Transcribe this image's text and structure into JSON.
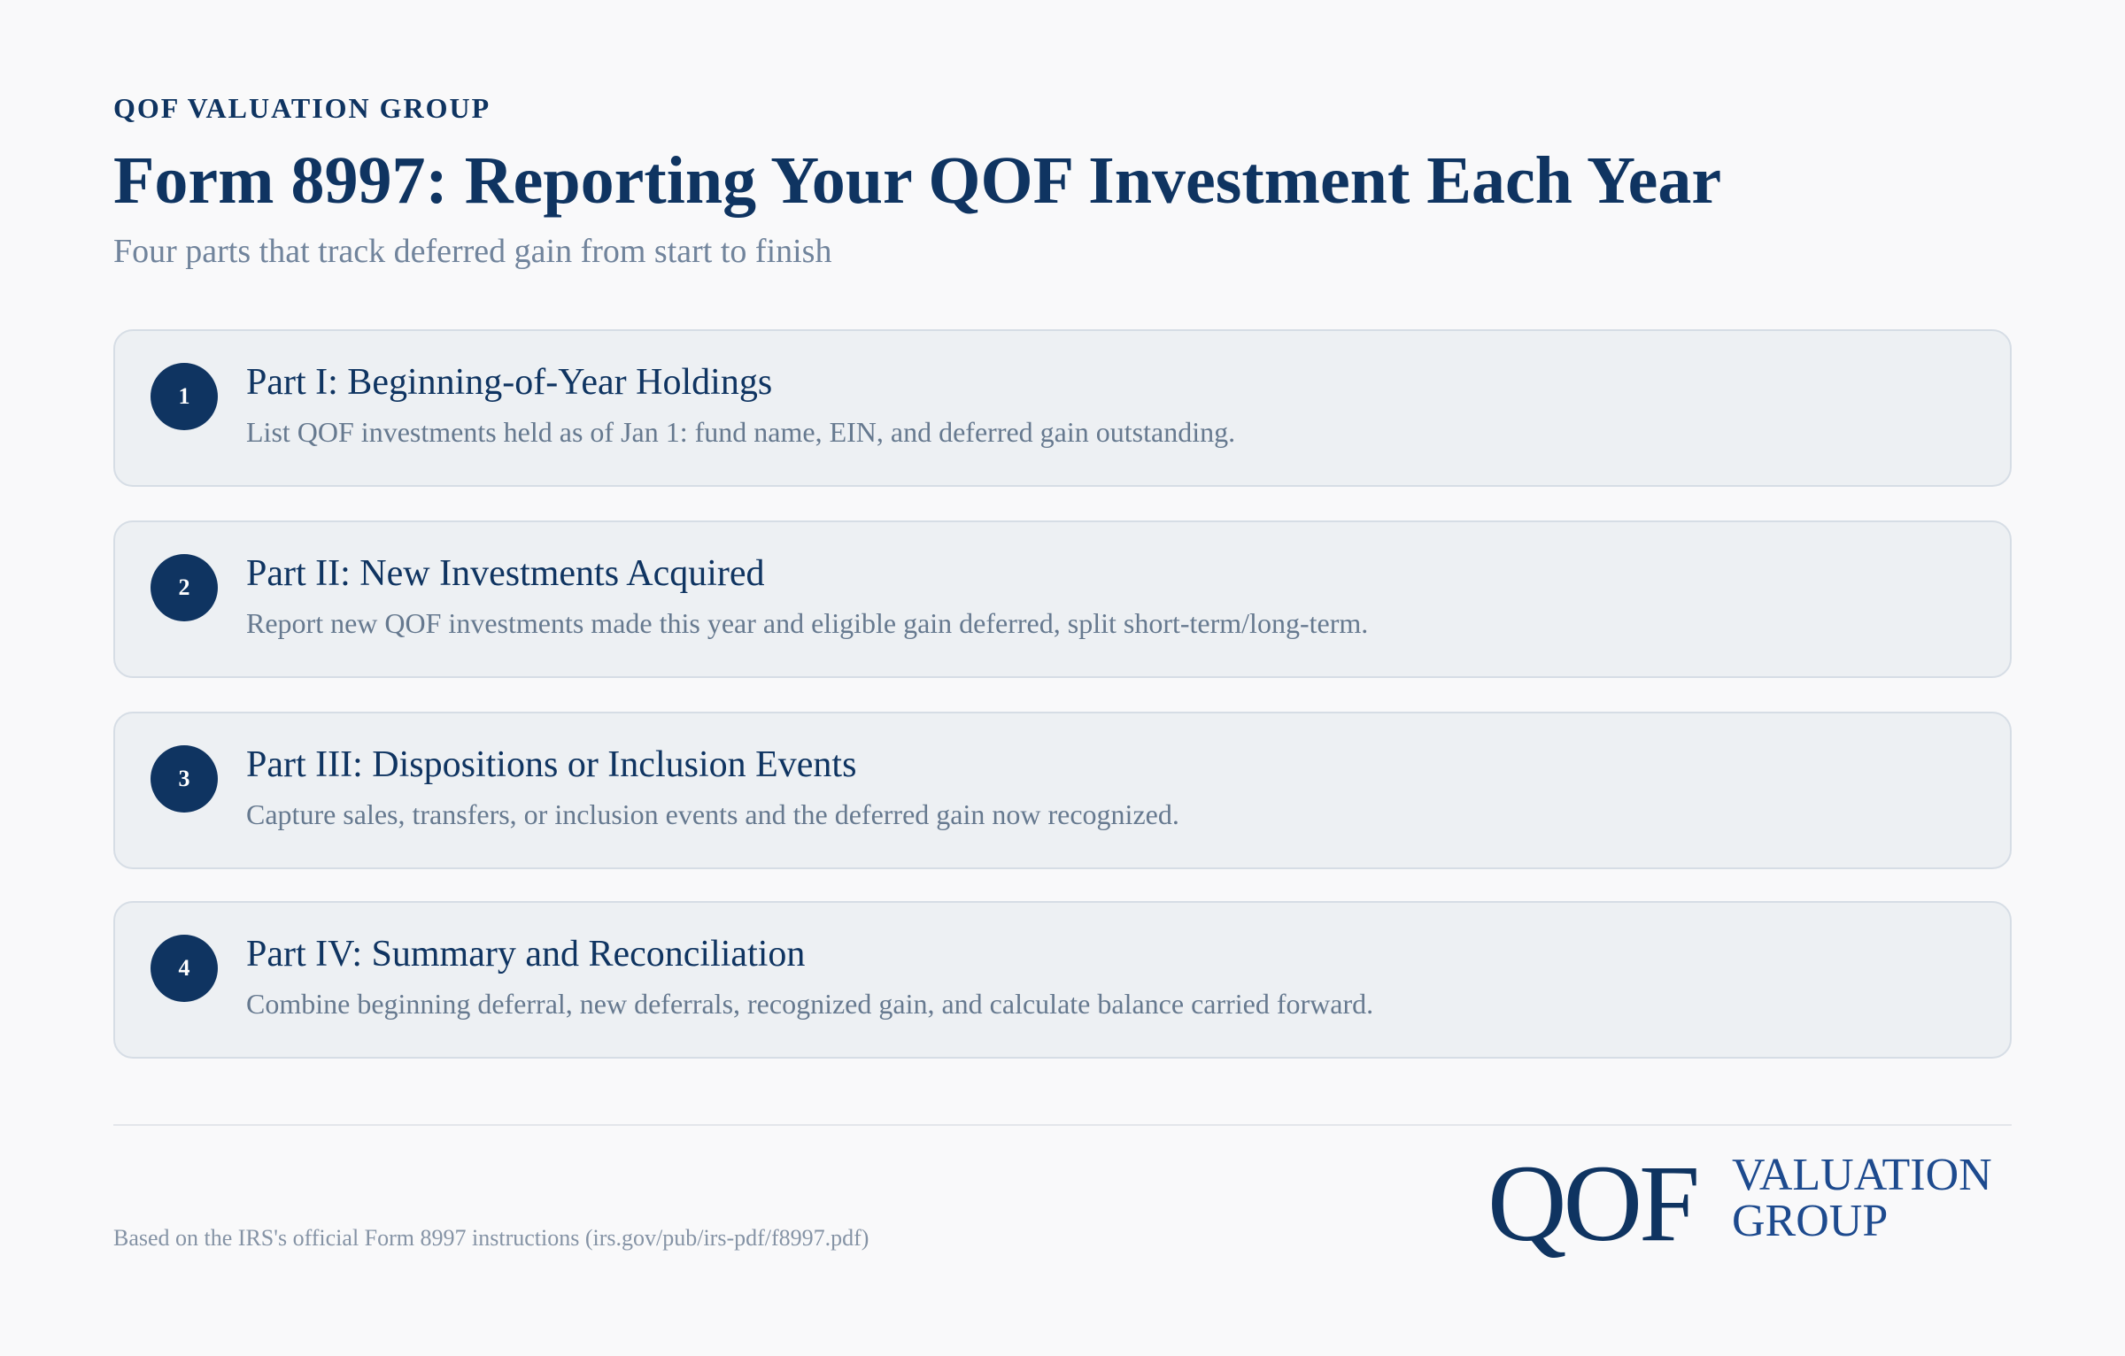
{
  "header": {
    "eyebrow": "QOF VALUATION GROUP",
    "title": "Form 8997: Reporting Your QOF Investment Each Year",
    "subtitle": "Four parts that track deferred gain from start to finish"
  },
  "parts": [
    {
      "number": "1",
      "title": "Part I: Beginning-of-Year Holdings",
      "description": "List QOF investments held as of Jan 1: fund name, EIN, and deferred gain outstanding."
    },
    {
      "number": "2",
      "title": "Part II: New Investments Acquired",
      "description": "Report new QOF investments made this year and eligible gain deferred, split short-term/long-term."
    },
    {
      "number": "3",
      "title": "Part III: Dispositions or Inclusion Events",
      "description": "Capture sales, transfers, or inclusion events and the deferred gain now recognized."
    },
    {
      "number": "4",
      "title": "Part IV: Summary and Reconciliation",
      "description": "Combine beginning deferral, new deferrals, recognized gain, and calculate balance carried forward."
    }
  ],
  "footer": {
    "source_note": "Based on the IRS's official Form 8997 instructions (irs.gov/pub/irs-pdf/f8997.pdf)",
    "logo": {
      "mark": "QOF",
      "line1": "VALUATION",
      "line2": "GROUP"
    }
  },
  "colors": {
    "primary": "#0f3461",
    "card_background": "#edf0f3",
    "card_border": "#d6dde5",
    "muted_text": "#66798f",
    "page_background": "#f9f9fa"
  }
}
